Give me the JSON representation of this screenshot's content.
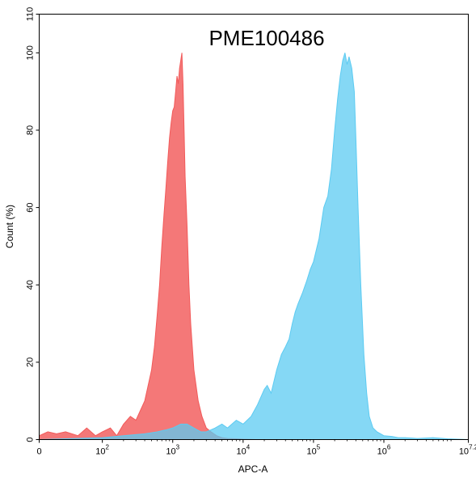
{
  "chart_data": {
    "type": "area",
    "title": "PME100486",
    "xlabel": "APC-A",
    "ylabel": "Count (%)",
    "xscale": "biexponential",
    "xlim": [
      0,
      15848932
    ],
    "ylim": [
      0,
      110
    ],
    "grid": false,
    "y_ticks": [
      "0",
      "20",
      "40",
      "60",
      "80",
      "100"
    ],
    "y_top_label": "110",
    "x_ticks": [
      {
        "value": 0,
        "base": "0",
        "exp": ""
      },
      {
        "value": 100,
        "base": "10",
        "exp": "2"
      },
      {
        "value": 1000,
        "base": "10",
        "exp": "3"
      },
      {
        "value": 10000,
        "base": "10",
        "exp": "4"
      },
      {
        "value": 100000,
        "base": "10",
        "exp": "5"
      },
      {
        "value": 1000000,
        "base": "10",
        "exp": "6"
      },
      {
        "value": 15848932,
        "base": "10",
        "exp": "7.2"
      }
    ],
    "series": [
      {
        "color": "#f25a5a",
        "x": [
          0,
          10,
          20,
          30,
          45,
          60,
          80,
          100,
          130,
          160,
          200,
          250,
          300,
          400,
          500,
          550,
          600,
          650,
          700,
          750,
          800,
          850,
          900,
          950,
          1000,
          1050,
          1100,
          1150,
          1200,
          1250,
          1300,
          1350,
          1400,
          1450,
          1500,
          1600,
          1700,
          1800,
          2000,
          2300,
          2600,
          3000,
          3500,
          4200,
          5000,
          6000,
          8000,
          10000,
          15000
        ],
        "y": [
          1,
          2,
          1.5,
          2,
          1,
          3,
          1,
          2,
          3,
          1,
          4,
          6,
          5,
          10,
          18,
          24,
          32,
          40,
          50,
          58,
          65,
          72,
          78,
          82,
          85,
          86,
          90,
          94,
          92,
          96,
          98,
          100,
          92,
          80,
          68,
          55,
          40,
          30,
          18,
          10,
          6,
          3,
          2,
          1,
          0.5,
          0.3,
          0.2,
          0.1,
          0
        ]
      },
      {
        "color": "#5ccbf2",
        "x": [
          0,
          100,
          200,
          400,
          600,
          800,
          1000,
          1300,
          1600,
          2000,
          2500,
          3000,
          4000,
          5000,
          6000,
          8000,
          10000,
          13000,
          16000,
          20000,
          22000,
          25000,
          30000,
          35000,
          40000,
          45000,
          50000,
          55000,
          60000,
          70000,
          80000,
          90000,
          100000,
          120000,
          140000,
          160000,
          180000,
          200000,
          220000,
          240000,
          260000,
          280000,
          300000,
          320000,
          350000,
          380000,
          400000,
          430000,
          470000,
          520000,
          570000,
          620000,
          700000,
          800000,
          1000000,
          1300000,
          1600000,
          2000000,
          3000000,
          5000000,
          8000000,
          15848932
        ],
        "y": [
          0,
          0.5,
          1,
          1.5,
          2,
          2.5,
          3,
          4,
          4,
          3,
          2,
          2,
          3,
          4,
          3,
          5,
          4,
          6,
          9,
          13,
          14,
          12,
          18,
          22,
          24,
          26,
          30,
          33,
          35,
          38,
          41,
          44,
          46,
          52,
          60,
          63,
          70,
          80,
          88,
          94,
          98,
          100,
          97,
          99,
          96,
          90,
          78,
          60,
          40,
          22,
          12,
          6,
          3,
          2,
          1,
          0.8,
          0.5,
          0.5,
          0.3,
          0.5,
          0.2,
          0
        ]
      }
    ]
  }
}
